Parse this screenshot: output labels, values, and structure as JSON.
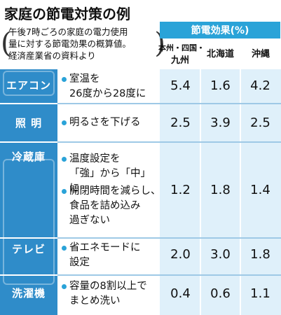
{
  "title": "家庭の節電対策の例",
  "note": {
    "line1": "午後7時ごろの家庭の電力使用",
    "line2": "量に対する節電効果の概算値。",
    "line3": "経済産業省の資料より"
  },
  "effect_header": "節電効果(%)",
  "regions": {
    "honshu_line1": "本州・四国・",
    "honshu_line2": "九州",
    "hokkaido": "北海道",
    "okinawa": "沖縄"
  },
  "rows": [
    {
      "category": "エアコン",
      "items": [
        {
          "line1": "室温を",
          "line2": "26度から28度に",
          "line3": "",
          "honshu": "5.4",
          "hokkaido": "1.6",
          "okinawa": "4.2"
        }
      ]
    },
    {
      "category": "照 明",
      "items": [
        {
          "line1": "明るさを下げる",
          "line2": "",
          "line3": "",
          "honshu": "2.5",
          "hokkaido": "3.9",
          "okinawa": "2.5"
        }
      ]
    },
    {
      "category": "冷蔵庫",
      "items": [
        {
          "line1": "温度設定を",
          "line2": "「強」から「中」に",
          "line3": ""
        },
        {
          "line1": "開閉時間を減らし、",
          "line2": "食品を詰め込み",
          "line3": "過ぎない",
          "honshu": "1.2",
          "hokkaido": "1.8",
          "okinawa": "1.4"
        }
      ]
    },
    {
      "category": "テレビ",
      "items": [
        {
          "line1": "省エネモードに",
          "line2": "設定",
          "line3": "",
          "honshu": "2.0",
          "hokkaido": "3.0",
          "okinawa": "1.8"
        }
      ]
    },
    {
      "category": "洗濯機",
      "items": [
        {
          "line1": "容量の8割以上で",
          "line2": "まとめ洗い",
          "line3": "",
          "honshu": "0.4",
          "hokkaido": "0.6",
          "okinawa": "1.1"
        }
      ]
    }
  ],
  "colors": {
    "category_bg": "#2f8cc9",
    "header_bg": "#2aa3d8",
    "value_bg": "#dff0fa",
    "bullet": "#2aa3d8"
  }
}
